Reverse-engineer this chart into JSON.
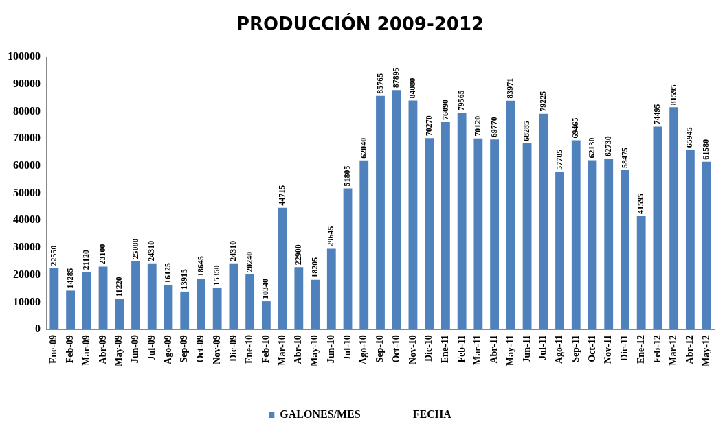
{
  "chart_data": {
    "type": "bar",
    "title": "PRODUCCIÓN 2009-2012",
    "categories": [
      "Ene-09",
      "Feb-09",
      "Mar-09",
      "Abr-09",
      "May-09",
      "Jun-09",
      "Jul-09",
      "Ago-09",
      "Sep-09",
      "Oct-09",
      "Nov-09",
      "Dic-09",
      "Ene-10",
      "Feb-10",
      "Mar-10",
      "Abr-10",
      "May-10",
      "Jun-10",
      "Jul-10",
      "Ago-10",
      "Sep-10",
      "Oct-10",
      "Nov-10",
      "Dic-10",
      "Ene-11",
      "Feb-11",
      "Mar-11",
      "Abr-11",
      "May-11",
      "Jun-11",
      "Jul-11",
      "Ago-11",
      "Sep-11",
      "Oct-11",
      "Nov-11",
      "Dic-11",
      "Ene-12",
      "Feb-12",
      "Mar-12",
      "Abr-12",
      "May-12"
    ],
    "series": [
      {
        "name": "GALONES/MES",
        "color": "#4f81bd",
        "values": [
          22550,
          14285,
          21120,
          23100,
          11220,
          25080,
          24310,
          16125,
          13915,
          18645,
          15350,
          24310,
          20240,
          10340,
          44715,
          22900,
          18205,
          29645,
          51805,
          62040,
          85765,
          87895,
          84080,
          70270,
          76090,
          79565,
          70120,
          69770,
          83971,
          68285,
          79225,
          57785,
          69465,
          62130,
          62730,
          58475,
          41595,
          74495,
          81595,
          65945,
          61580
        ]
      }
    ],
    "ylim": [
      0,
      100000
    ],
    "yticks": [
      0,
      10000,
      20000,
      30000,
      40000,
      50000,
      60000,
      70000,
      80000,
      90000,
      100000
    ],
    "grid": false,
    "legend": "bottom",
    "data_labels": true,
    "annotations": [
      "FECHA"
    ]
  }
}
